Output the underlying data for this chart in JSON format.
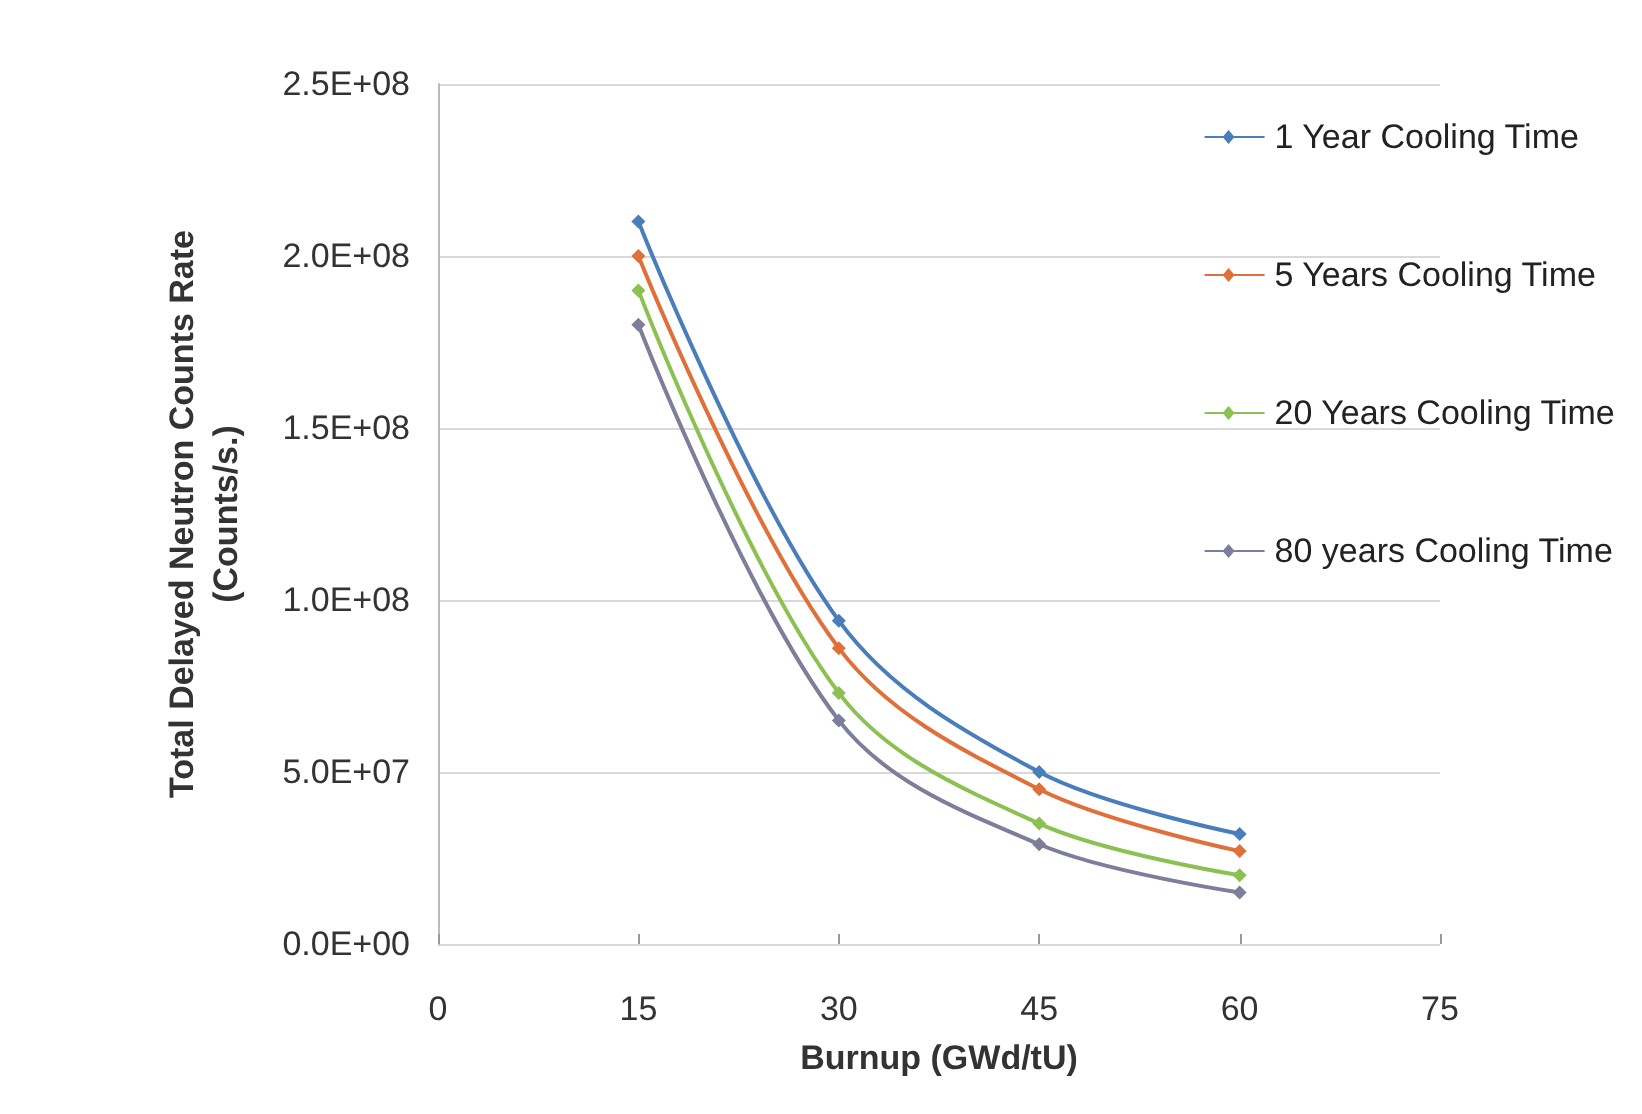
{
  "chart_data": {
    "type": "line",
    "xlabel": "Burnup (GWd/tU)",
    "ylabel": "Total Delayed Neutron Counts Rate\n(Counts/s.)",
    "x": [
      15,
      30,
      45,
      60
    ],
    "series": [
      {
        "name": "1 Year Cooling Time",
        "color": "#4a7ebb",
        "values": [
          210000000,
          94000000,
          50000000,
          32000000
        ]
      },
      {
        "name": "5 Years Cooling Time",
        "color": "#e0703a",
        "values": [
          200000000,
          86000000,
          45000000,
          27000000
        ]
      },
      {
        "name": "20 Years Cooling Time",
        "color": "#8cc152",
        "values": [
          190000000,
          73000000,
          35000000,
          20000000
        ]
      },
      {
        "name": "80 years Cooling Time",
        "color": "#7d7d9c",
        "values": [
          180000000,
          65000000,
          29000000,
          15000000
        ]
      }
    ],
    "xlim": [
      0,
      75
    ],
    "xticks": [
      0,
      15,
      30,
      45,
      60,
      75
    ],
    "ylim": [
      0,
      250000000
    ],
    "yticks": [
      {
        "value": 0,
        "label": "0.0E+00"
      },
      {
        "value": 50000000,
        "label": "5.0E+07"
      },
      {
        "value": 100000000,
        "label": "1.0E+08"
      },
      {
        "value": 150000000,
        "label": "1.5E+08"
      },
      {
        "value": 200000000,
        "label": "2.0E+08"
      },
      {
        "value": 250000000,
        "label": "2.5E+08"
      }
    ],
    "grid": "y",
    "legend": "right",
    "marker": "diamond",
    "line_style": "solid"
  }
}
